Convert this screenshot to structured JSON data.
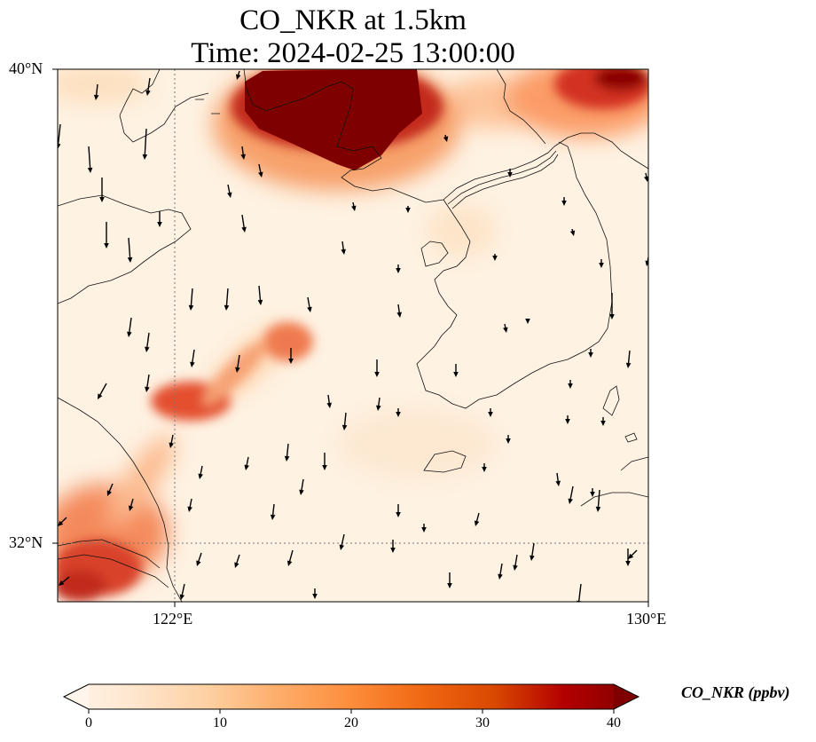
{
  "title_line1": "CO_NKR at 1.5km",
  "title_line2": "Time: 2024-02-25 13:00:00",
  "lat_labels": [
    "40°N",
    "32°N"
  ],
  "lon_labels": [
    "122°E",
    "130°E"
  ],
  "colorbar": {
    "label": "CO_NKR (ppbv)",
    "ticks": [
      "0",
      "10",
      "20",
      "30",
      "40"
    ],
    "min": 0,
    "max": 40,
    "colormap": [
      "#fff5eb",
      "#fee6ce",
      "#fdd0a2",
      "#fdae6b",
      "#fd8d3c",
      "#f16913",
      "#d94801",
      "#b30000",
      "#7f0000"
    ]
  },
  "map": {
    "lon_range": [
      120,
      130
    ],
    "lat_range": [
      31,
      40
    ],
    "gridlines": {
      "lon": [
        122
      ],
      "lat": [
        32
      ],
      "style": "dotted"
    }
  }
}
